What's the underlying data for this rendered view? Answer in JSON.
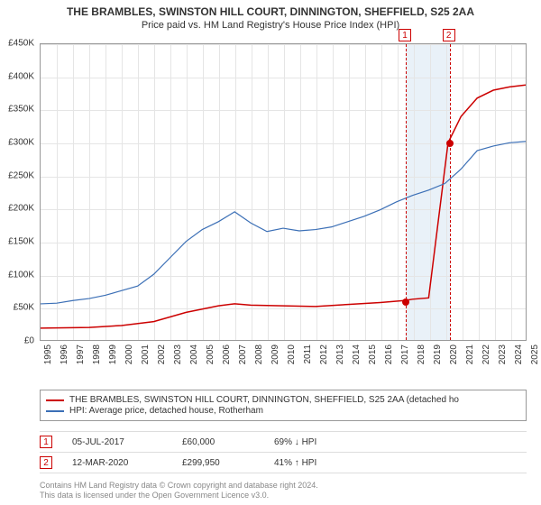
{
  "title": {
    "line1": "THE BRAMBLES, SWINSTON HILL COURT, DINNINGTON, SHEFFIELD, S25 2AA",
    "line2": "Price paid vs. HM Land Registry's House Price Index (HPI)"
  },
  "chart": {
    "type": "line",
    "ylim": [
      0,
      450000
    ],
    "ytick_step": 50000,
    "yticks": [
      "£0",
      "£50K",
      "£100K",
      "£150K",
      "£200K",
      "£250K",
      "£300K",
      "£350K",
      "£400K",
      "£450K"
    ],
    "xlim": [
      1995,
      2025
    ],
    "xticks": [
      "1995",
      "1996",
      "1997",
      "1998",
      "1999",
      "2000",
      "2001",
      "2002",
      "2003",
      "2004",
      "2005",
      "2006",
      "2007",
      "2008",
      "2009",
      "2010",
      "2011",
      "2012",
      "2013",
      "2014",
      "2015",
      "2016",
      "2017",
      "2018",
      "2019",
      "2020",
      "2021",
      "2022",
      "2023",
      "2024",
      "2025"
    ],
    "grid_color": "#e5e5e5",
    "border_color": "#999999",
    "background_color": "#ffffff",
    "series": [
      {
        "name": "property",
        "label": "THE BRAMBLES, SWINSTON HILL COURT, DINNINGTON, SHEFFIELD, S25 2AA (detached ho",
        "color": "#cc0000",
        "width": 1.5,
        "points": [
          [
            1995,
            18000
          ],
          [
            1998,
            19000
          ],
          [
            2000,
            22000
          ],
          [
            2002,
            28000
          ],
          [
            2004,
            42000
          ],
          [
            2006,
            52000
          ],
          [
            2007,
            55000
          ],
          [
            2008,
            53000
          ],
          [
            2010,
            52000
          ],
          [
            2012,
            51000
          ],
          [
            2014,
            54000
          ],
          [
            2016,
            57000
          ],
          [
            2017.5,
            60000
          ],
          [
            2018,
            62000
          ],
          [
            2019,
            64000
          ],
          [
            2020.2,
            299950
          ],
          [
            2021,
            340000
          ],
          [
            2022,
            368000
          ],
          [
            2023,
            380000
          ],
          [
            2024,
            385000
          ],
          [
            2025,
            388000
          ]
        ]
      },
      {
        "name": "hpi",
        "label": "HPI: Average price, detached house, Rotherham",
        "color": "#3b6fb6",
        "width": 1.2,
        "points": [
          [
            1995,
            55000
          ],
          [
            1996,
            56000
          ],
          [
            1997,
            60000
          ],
          [
            1998,
            63000
          ],
          [
            1999,
            68000
          ],
          [
            2000,
            75000
          ],
          [
            2001,
            82000
          ],
          [
            2002,
            100000
          ],
          [
            2003,
            125000
          ],
          [
            2004,
            150000
          ],
          [
            2005,
            168000
          ],
          [
            2006,
            180000
          ],
          [
            2007,
            195000
          ],
          [
            2008,
            178000
          ],
          [
            2009,
            165000
          ],
          [
            2010,
            170000
          ],
          [
            2011,
            166000
          ],
          [
            2012,
            168000
          ],
          [
            2013,
            172000
          ],
          [
            2014,
            180000
          ],
          [
            2015,
            188000
          ],
          [
            2016,
            198000
          ],
          [
            2017,
            210000
          ],
          [
            2018,
            220000
          ],
          [
            2019,
            228000
          ],
          [
            2020,
            238000
          ],
          [
            2021,
            260000
          ],
          [
            2022,
            288000
          ],
          [
            2023,
            295000
          ],
          [
            2024,
            300000
          ],
          [
            2025,
            302000
          ]
        ]
      }
    ],
    "shaded_band": {
      "x_start": 2017.5,
      "x_end": 2020.2,
      "color": "#dbe7f3"
    },
    "vlines": [
      {
        "x": 2017.5,
        "color": "#cc0000",
        "label": "1"
      },
      {
        "x": 2020.2,
        "color": "#cc0000",
        "label": "2"
      }
    ],
    "markers": [
      {
        "x": 2017.5,
        "y": 60000,
        "color": "#cc0000"
      },
      {
        "x": 2020.2,
        "y": 299950,
        "color": "#cc0000"
      }
    ]
  },
  "legend": {
    "items": [
      {
        "color": "#cc0000",
        "label": "THE BRAMBLES, SWINSTON HILL COURT, DINNINGTON, SHEFFIELD, S25 2AA (detached ho"
      },
      {
        "color": "#3b6fb6",
        "label": "HPI: Average price, detached house, Rotherham"
      }
    ]
  },
  "sales": [
    {
      "idx": "1",
      "color": "#cc0000",
      "date": "05-JUL-2017",
      "price": "£60,000",
      "pct": "69% ↓ HPI"
    },
    {
      "idx": "2",
      "color": "#cc0000",
      "date": "12-MAR-2020",
      "price": "£299,950",
      "pct": "41% ↑ HPI"
    }
  ],
  "footer": {
    "line1": "Contains HM Land Registry data © Crown copyright and database right 2024.",
    "line2": "This data is licensed under the Open Government Licence v3.0."
  }
}
